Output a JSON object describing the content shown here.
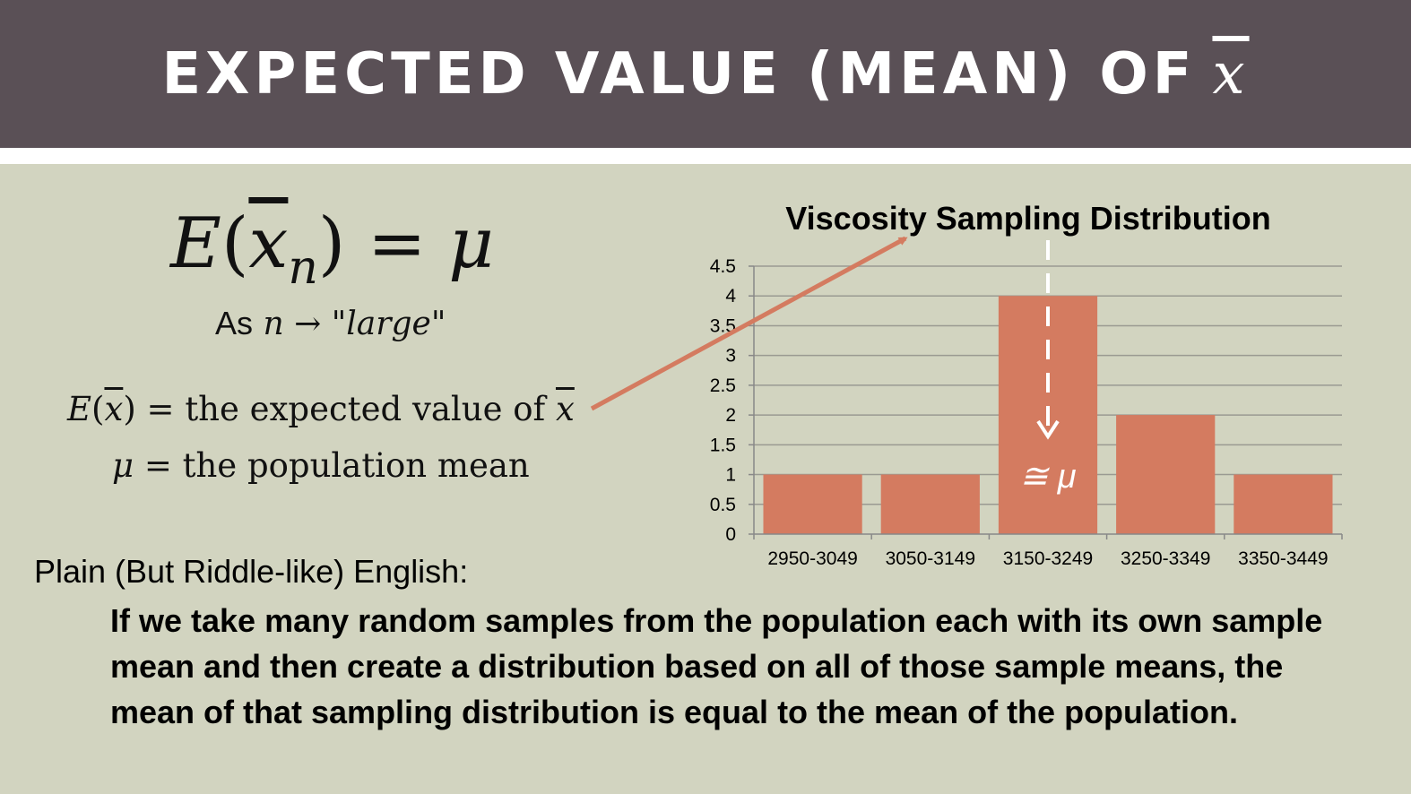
{
  "slide": {
    "title": "EXPECTED VALUE (MEAN) OF",
    "title_symbol": "x",
    "formula": {
      "lhs_fn": "E",
      "var": "x",
      "sub": "n",
      "rhs": "μ"
    },
    "as_line": {
      "prefix": "As",
      "var": "n",
      "arrow": "→",
      "condition": "\"large\""
    },
    "definitions": [
      {
        "symbol": "E(x̄)",
        "fn": "E",
        "var": "x",
        "equals": "=",
        "text": "the expected value of",
        "tail_var": "x"
      },
      {
        "symbol": "μ",
        "equals": "=",
        "text": "the population mean"
      }
    ],
    "plain_heading": "Plain (But Riddle-like) English:",
    "plain_body": "If we take many random samples from the population each with its own sample mean and then create a distribution based on all of those sample means, the mean of that sampling distribution is equal to the mean of the population."
  },
  "colors": {
    "title_bg": "#5a5056",
    "slide_bg": "#d2d4c0",
    "bar": "#d47b60",
    "arrow": "#d47b60",
    "grid": "#9a9a92"
  },
  "chart_data": {
    "type": "bar",
    "title": "Viscosity Sampling Distribution",
    "categories": [
      "2950-3049",
      "3050-3149",
      "3150-3249",
      "3250-3349",
      "3350-3449"
    ],
    "values": [
      1,
      1,
      4,
      2,
      1
    ],
    "ylim": [
      0,
      4.5
    ],
    "yticks": [
      "0",
      "0.5",
      "1",
      "1.5",
      "2",
      "2.5",
      "3",
      "3.5",
      "4",
      "4.5"
    ],
    "xlabel": "",
    "ylabel": "",
    "grid": true,
    "legend": "none",
    "annotation": {
      "category_index": 2,
      "text": "≅ μ"
    }
  }
}
